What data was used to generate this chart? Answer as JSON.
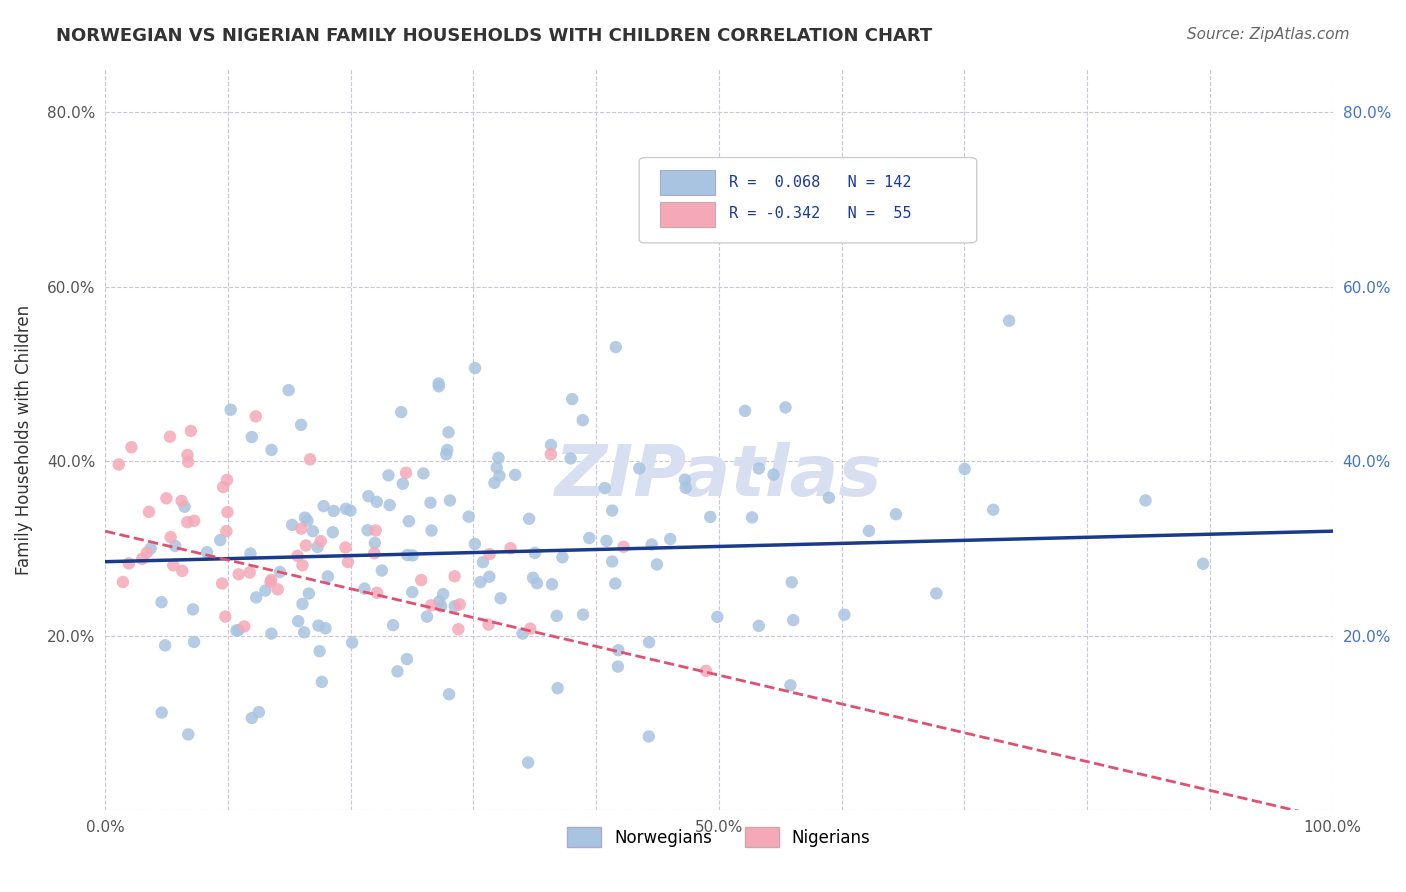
{
  "title": "NORWEGIAN VS NIGERIAN FAMILY HOUSEHOLDS WITH CHILDREN CORRELATION CHART",
  "source": "Source: ZipAtlas.com",
  "ylabel": "Family Households with Children",
  "watermark": "ZIPatlas",
  "xlim": [
    0.0,
    1.0
  ],
  "ylim": [
    0.0,
    0.85
  ],
  "x_ticks": [
    0.0,
    0.1,
    0.2,
    0.3,
    0.4,
    0.5,
    0.6,
    0.7,
    0.8,
    0.9,
    1.0
  ],
  "x_tick_labels": [
    "0.0%",
    "",
    "",
    "",
    "",
    "50.0%",
    "",
    "",
    "",
    "",
    "100.0%"
  ],
  "y_ticks": [
    0.0,
    0.2,
    0.4,
    0.6,
    0.8
  ],
  "y_tick_labels": [
    "",
    "20.0%",
    "40.0%",
    "60.0%",
    "80.0%"
  ],
  "norwegian_color": "#a8c4e0",
  "nigerian_color": "#f4a8b8",
  "norwegian_line_color": "#1a3a8c",
  "nigerian_line_color": "#e05070",
  "norwegian_R": 0.068,
  "norwegian_N": 142,
  "nigerian_R": -0.342,
  "nigerian_N": 55,
  "norwegian_intercept": 0.285,
  "norwegian_slope": 0.035,
  "nigerian_intercept": 0.32,
  "nigerian_slope": -0.33,
  "background_color": "#ffffff",
  "grid_color": "#c8c8d8",
  "title_color": "#333333",
  "source_color": "#666666",
  "watermark_color": "#d8dff0",
  "right_tick_color": "#4472c4",
  "seed": 42
}
